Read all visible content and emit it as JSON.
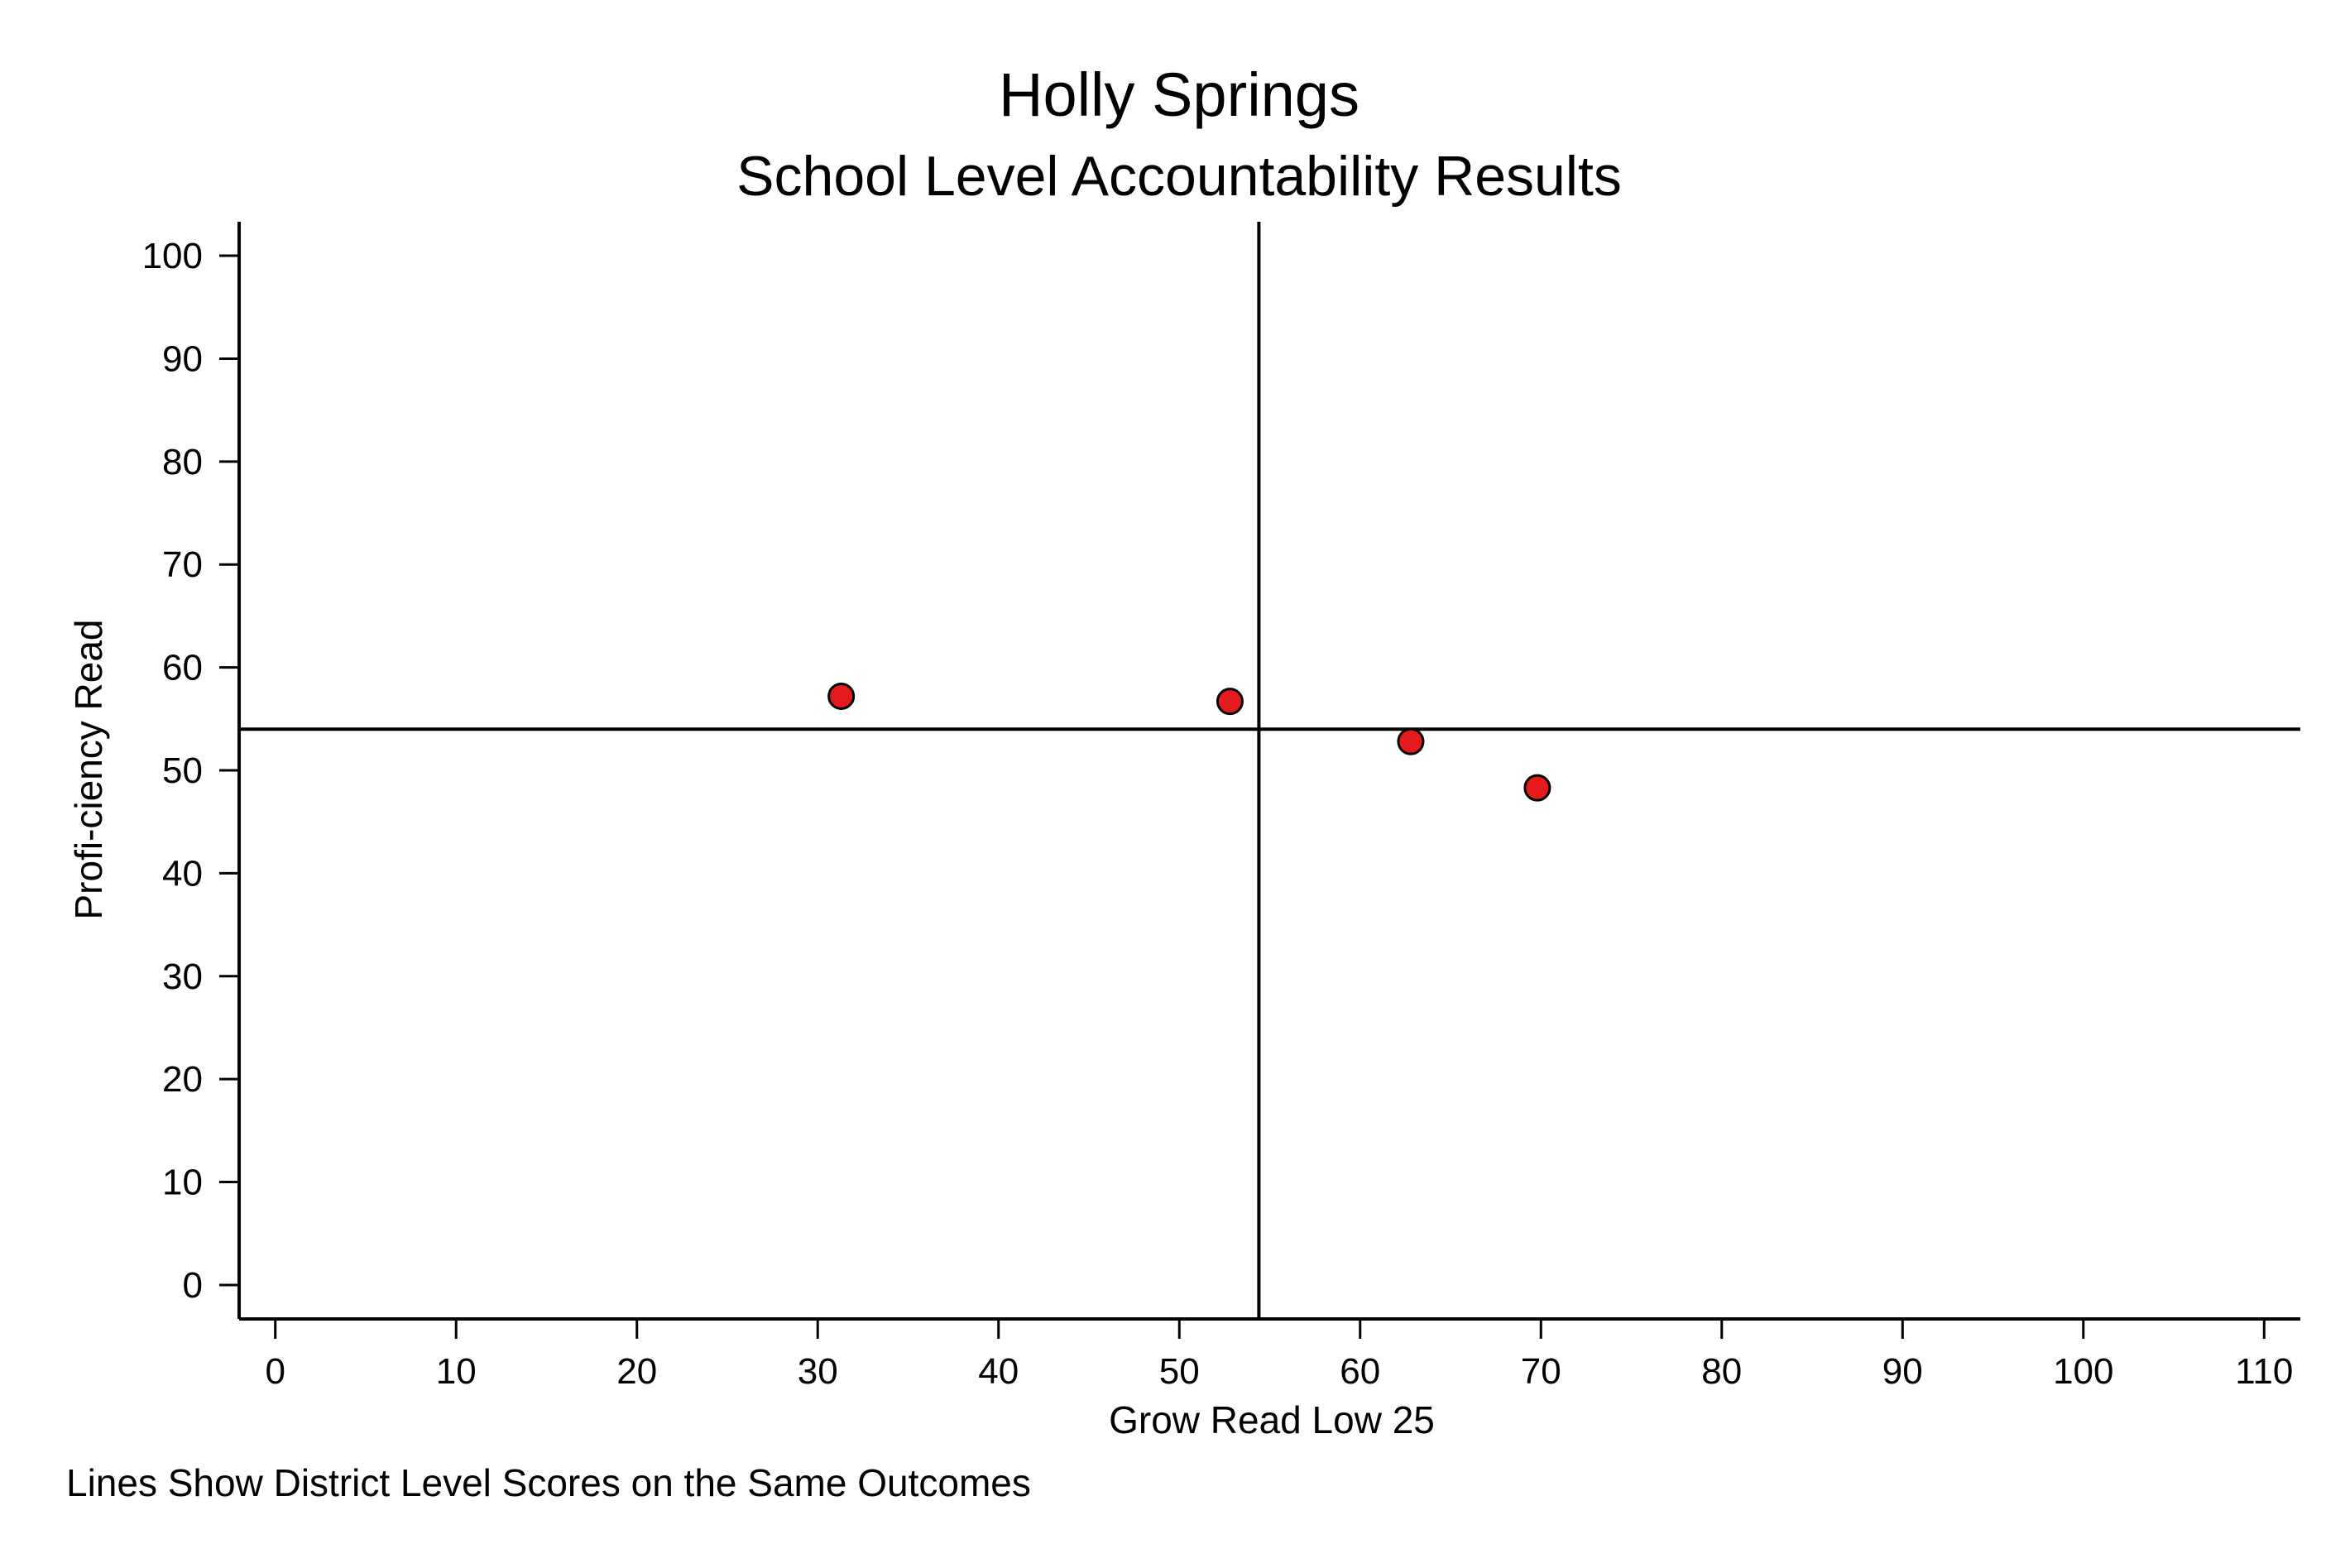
{
  "chart_data": {
    "type": "scatter",
    "title": "Holly Springs",
    "subtitle": "School Level Accountability Results",
    "xlabel": "Grow Read Low 25",
    "ylabel": "Profi-ciency Read",
    "note": "Lines Show District Level Scores on the Same Outcomes",
    "xlim": [
      -2,
      112
    ],
    "ylim": [
      -3.3,
      103.3
    ],
    "x_ticks": [
      0,
      10,
      20,
      30,
      40,
      50,
      60,
      70,
      80,
      90,
      100,
      110
    ],
    "y_ticks": [
      0,
      10,
      20,
      30,
      40,
      50,
      60,
      70,
      80,
      90,
      100
    ],
    "reference_lines": {
      "x": 54.4,
      "y": 54.0
    },
    "points": [
      {
        "x": 31.3,
        "y": 57.2
      },
      {
        "x": 52.8,
        "y": 56.7
      },
      {
        "x": 62.8,
        "y": 52.8
      },
      {
        "x": 69.8,
        "y": 48.3
      }
    ],
    "marker_color": "#e41a1c",
    "marker_outline": "#000000",
    "grid": false,
    "legend": "none"
  }
}
